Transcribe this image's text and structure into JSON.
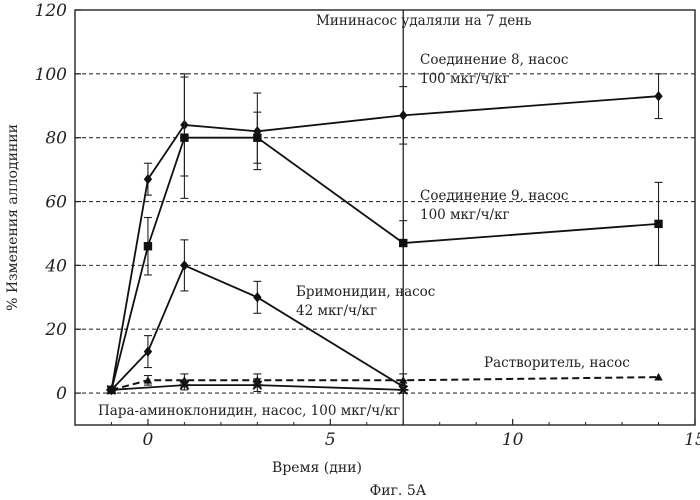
{
  "chart_data": {
    "type": "line",
    "title": "",
    "caption": "Фиг. 5А",
    "xlabel": "Время (дни)",
    "ylabel": "% Изменения аллодинии",
    "xlim": [
      -2,
      15
    ],
    "ylim": [
      -10,
      120
    ],
    "x_ticks": [
      0,
      5,
      10,
      15
    ],
    "y_ticks": [
      0,
      20,
      40,
      60,
      80,
      100,
      120
    ],
    "grid": "dashed horizontal",
    "pump_removal_day": 7,
    "annotations": {
      "pump_removed": "Мининасос удаляли на 7 день",
      "compound8_l1": "Соединение 8, насос",
      "compound8_l2": "100 мкг/ч/кг",
      "compound9_l1": "Соединение 9, насос",
      "compound9_l2": "100 мкг/ч/кг",
      "brimonidine_l1": "Бримонидин, насос",
      "brimonidine_l2": "42 мкг/ч/кг",
      "vehicle": "Растворитель, насос",
      "apraclonidine": "Пара-аминоклонидин, насос, 100 мкг/ч/кг"
    },
    "series": [
      {
        "id": "compound8",
        "marker": "diamond",
        "line": "solid",
        "points": [
          {
            "x": -1,
            "y": 1,
            "err": 0
          },
          {
            "x": 0,
            "y": 67,
            "err": 5
          },
          {
            "x": 1,
            "y": 84,
            "err": 16
          },
          {
            "x": 3,
            "y": 82,
            "err": 12
          },
          {
            "x": 7,
            "y": 87,
            "err": 9
          },
          {
            "x": 14,
            "y": 93,
            "err": 7
          }
        ]
      },
      {
        "id": "compound9",
        "marker": "square",
        "line": "solid",
        "points": [
          {
            "x": -1,
            "y": 1,
            "err": 0
          },
          {
            "x": 0,
            "y": 46,
            "err": 9
          },
          {
            "x": 1,
            "y": 80,
            "err": 19
          },
          {
            "x": 3,
            "y": 80,
            "err": 8
          },
          {
            "x": 7,
            "y": 47,
            "err": 7
          },
          {
            "x": 14,
            "y": 53,
            "err": 13
          }
        ]
      },
      {
        "id": "brimonidine",
        "marker": "diamond",
        "line": "solid",
        "points": [
          {
            "x": -1,
            "y": 1,
            "err": 0
          },
          {
            "x": 0,
            "y": 13,
            "err": 5
          },
          {
            "x": 1,
            "y": 40,
            "err": 8
          },
          {
            "x": 3,
            "y": 30,
            "err": 5
          },
          {
            "x": 7,
            "y": 2,
            "err": 2
          }
        ]
      },
      {
        "id": "vehicle",
        "marker": "triangle",
        "line": "dashed",
        "points": [
          {
            "x": -1,
            "y": 1,
            "err": 0
          },
          {
            "x": 0,
            "y": 4,
            "err": 1.5
          },
          {
            "x": 1,
            "y": 4,
            "err": 2
          },
          {
            "x": 3,
            "y": 4,
            "err": 2
          },
          {
            "x": 7,
            "y": 4,
            "err": 2
          },
          {
            "x": 14,
            "y": 5,
            "err": 0
          }
        ]
      },
      {
        "id": "apraclonidine",
        "marker": "star",
        "line": "solid",
        "points": [
          {
            "x": -1,
            "y": 1,
            "err": 0
          },
          {
            "x": 1,
            "y": 2.5,
            "err": 1.5
          },
          {
            "x": 3,
            "y": 2.5,
            "err": 2
          },
          {
            "x": 7,
            "y": 1,
            "err": 1
          }
        ]
      }
    ]
  }
}
